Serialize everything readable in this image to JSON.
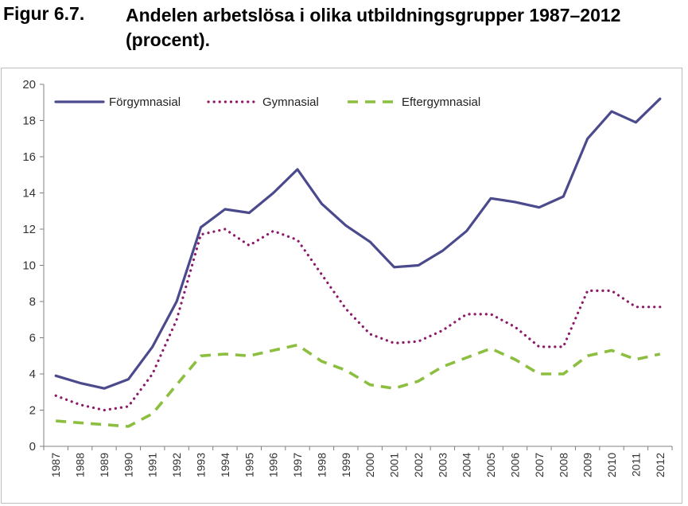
{
  "figure": {
    "label": "Figur 6.7.",
    "title": "Andelen arbetslösa i olika utbildningsgrupper 1987–2012 (procent)."
  },
  "colors": {
    "forgymnasial": "#4a4a8c",
    "gymnasial": "#8b1a6b",
    "eftergymnasial": "#8cbf3f",
    "axis": "#808080"
  },
  "chart_data": {
    "type": "line",
    "title": "Andelen arbetslösa i olika utbildningsgrupper 1987–2012 (procent).",
    "xlabel": "",
    "ylabel": "",
    "ylim": [
      0,
      20
    ],
    "yticks": [
      0,
      2,
      4,
      6,
      8,
      10,
      12,
      14,
      16,
      18,
      20
    ],
    "grid": false,
    "legend_position": "top-left",
    "categories": [
      "1987",
      "1988",
      "1989",
      "1990",
      "1991",
      "1992",
      "1993",
      "1994",
      "1995",
      "1996",
      "1997",
      "1998",
      "1999",
      "2000",
      "2001",
      "2002",
      "2003",
      "2004",
      "2005",
      "2006",
      "2007",
      "2008",
      "2009",
      "2010",
      "2011",
      "2012"
    ],
    "series": [
      {
        "name": "Förgymnasial",
        "style": "solid",
        "values": [
          3.9,
          3.5,
          3.2,
          3.7,
          5.5,
          8.0,
          12.1,
          13.1,
          12.9,
          14.0,
          15.3,
          13.4,
          12.2,
          11.3,
          9.9,
          10.0,
          10.8,
          11.9,
          13.7,
          13.5,
          13.2,
          13.8,
          17.0,
          18.5,
          17.9,
          19.2
        ]
      },
      {
        "name": "Gymnasial",
        "style": "dotted",
        "values": [
          2.8,
          2.3,
          2.0,
          2.2,
          4.0,
          7.0,
          11.7,
          12.0,
          11.1,
          11.9,
          11.4,
          9.5,
          7.6,
          6.2,
          5.7,
          5.8,
          6.4,
          7.3,
          7.3,
          6.6,
          5.5,
          5.5,
          8.6,
          8.6,
          7.7,
          7.7
        ]
      },
      {
        "name": "Eftergymnasial",
        "style": "dashed",
        "values": [
          1.4,
          1.3,
          1.2,
          1.1,
          1.8,
          3.4,
          5.0,
          5.1,
          5.0,
          5.3,
          5.6,
          4.7,
          4.2,
          3.4,
          3.2,
          3.6,
          4.4,
          4.9,
          5.4,
          4.8,
          4.0,
          4.0,
          5.0,
          5.3,
          4.8,
          5.1
        ]
      }
    ]
  }
}
